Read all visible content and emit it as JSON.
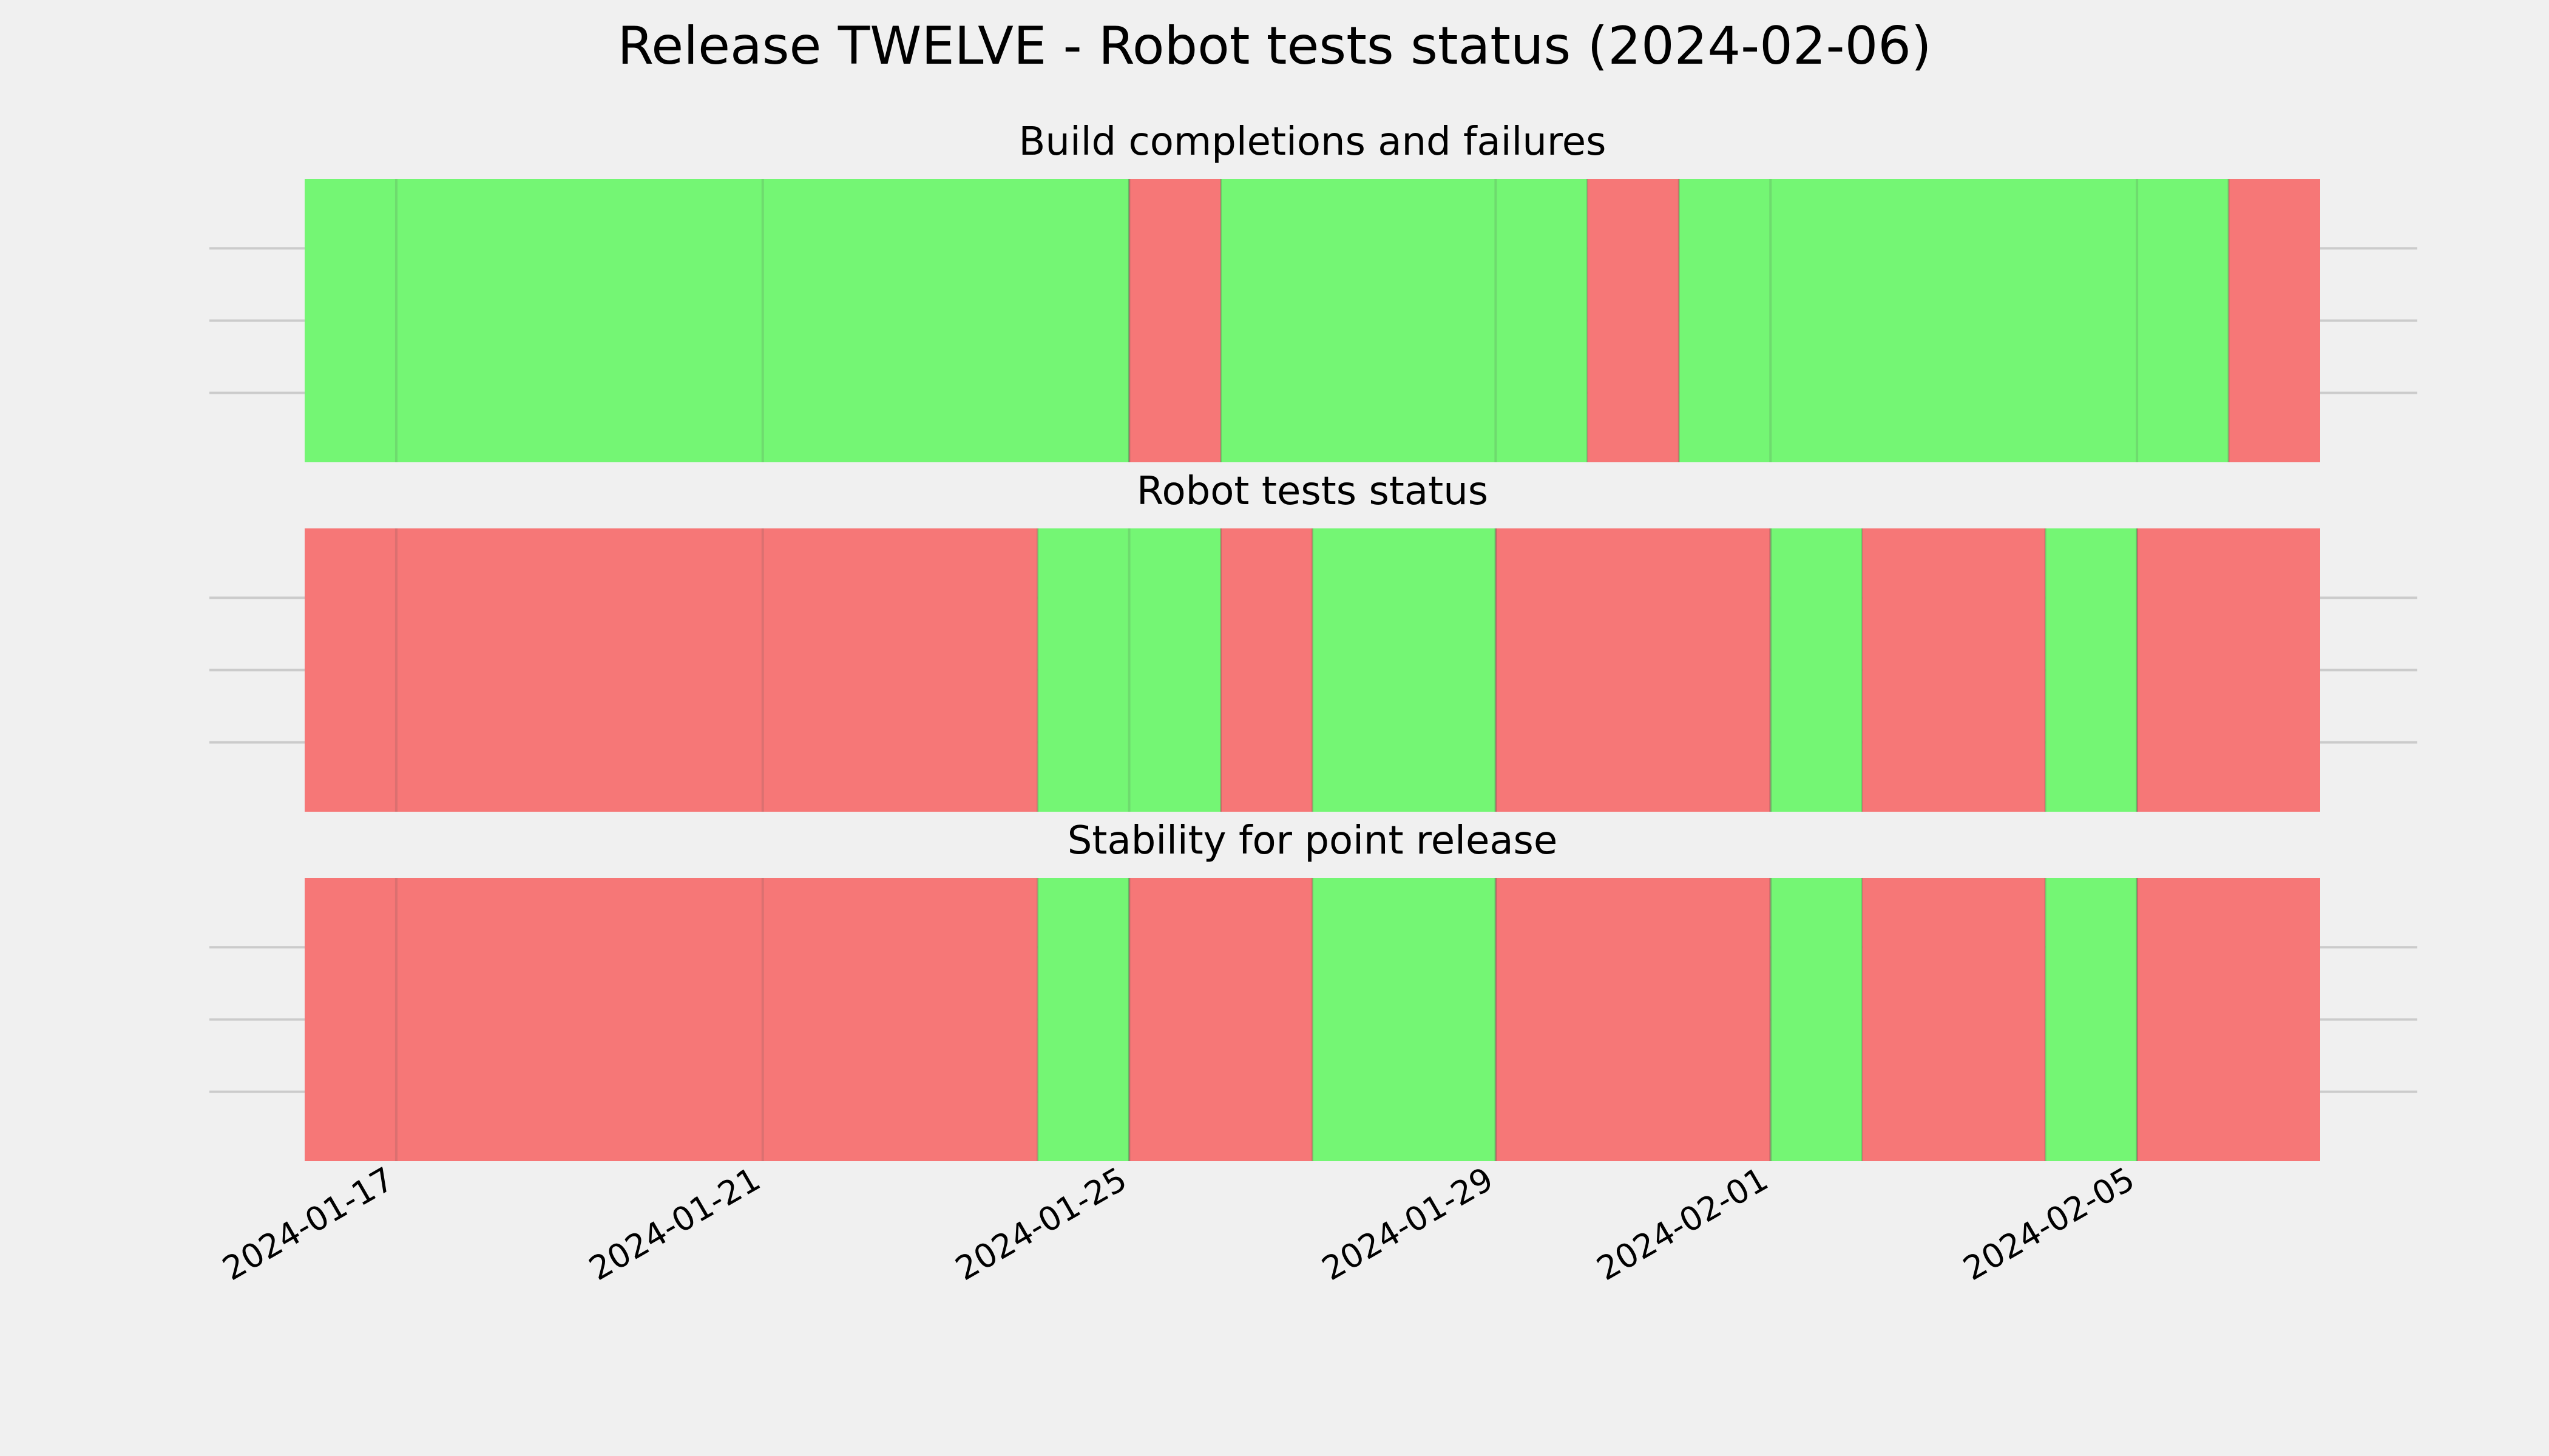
{
  "chart_data": {
    "type": "timeline",
    "title": "Release TWELVE - Robot tests status (2024-02-06)",
    "x_axis": {
      "type": "date",
      "range": [
        "2024-01-16",
        "2024-02-07"
      ],
      "tick_labels": [
        "2024-01-17",
        "2024-01-21",
        "2024-01-25",
        "2024-01-29",
        "2024-02-01",
        "2024-02-05"
      ],
      "tick_dates": [
        "2024-01-17",
        "2024-01-21",
        "2024-01-25",
        "2024-01-29",
        "2024-02-01",
        "2024-02-05"
      ]
    },
    "grid": true,
    "colors": {
      "pass": "#74f674",
      "fail": "#f67777",
      "background": "#f0f0f0",
      "grid": "#cbcbcb"
    },
    "panels": [
      {
        "title": "Build completions and failures",
        "segments": [
          {
            "start": "2024-01-16",
            "end": "2024-01-25",
            "status": "pass"
          },
          {
            "start": "2024-01-25",
            "end": "2024-01-26",
            "status": "fail"
          },
          {
            "start": "2024-01-26",
            "end": "2024-01-30",
            "status": "pass"
          },
          {
            "start": "2024-01-30",
            "end": "2024-01-31",
            "status": "fail"
          },
          {
            "start": "2024-01-31",
            "end": "2024-02-06",
            "status": "pass"
          },
          {
            "start": "2024-02-06",
            "end": "2024-02-07",
            "status": "fail"
          }
        ]
      },
      {
        "title": "Robot tests status",
        "segments": [
          {
            "start": "2024-01-16",
            "end": "2024-01-24",
            "status": "fail"
          },
          {
            "start": "2024-01-24",
            "end": "2024-01-26",
            "status": "pass"
          },
          {
            "start": "2024-01-26",
            "end": "2024-01-27",
            "status": "fail"
          },
          {
            "start": "2024-01-27",
            "end": "2024-01-29",
            "status": "pass"
          },
          {
            "start": "2024-01-29",
            "end": "2024-02-01",
            "status": "fail"
          },
          {
            "start": "2024-02-01",
            "end": "2024-02-02",
            "status": "pass"
          },
          {
            "start": "2024-02-02",
            "end": "2024-02-04",
            "status": "fail"
          },
          {
            "start": "2024-02-04",
            "end": "2024-02-05",
            "status": "pass"
          },
          {
            "start": "2024-02-05",
            "end": "2024-02-07",
            "status": "fail"
          }
        ]
      },
      {
        "title": "Stability for point release",
        "segments": [
          {
            "start": "2024-01-16",
            "end": "2024-01-24",
            "status": "fail"
          },
          {
            "start": "2024-01-24",
            "end": "2024-01-25",
            "status": "pass"
          },
          {
            "start": "2024-01-25",
            "end": "2024-01-27",
            "status": "fail"
          },
          {
            "start": "2024-01-27",
            "end": "2024-01-29",
            "status": "pass"
          },
          {
            "start": "2024-01-29",
            "end": "2024-02-01",
            "status": "fail"
          },
          {
            "start": "2024-02-01",
            "end": "2024-02-02",
            "status": "pass"
          },
          {
            "start": "2024-02-02",
            "end": "2024-02-04",
            "status": "fail"
          },
          {
            "start": "2024-02-04",
            "end": "2024-02-05",
            "status": "pass"
          },
          {
            "start": "2024-02-05",
            "end": "2024-02-07",
            "status": "fail"
          }
        ]
      }
    ]
  }
}
